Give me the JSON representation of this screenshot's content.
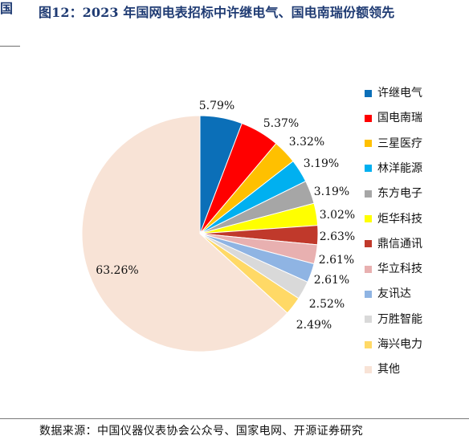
{
  "header": {
    "left_mark": "国",
    "title": "图12：2023 年国网电表招标中许继电气、国电南瑞份额领先"
  },
  "chart_data": {
    "type": "pie",
    "title": "",
    "legend_position": "right",
    "series": [
      {
        "name": "许继电气",
        "value": 5.79,
        "label": "5.79%",
        "color": "#0b6fb8"
      },
      {
        "name": "国电南瑞",
        "value": 5.37,
        "label": "5.37%",
        "color": "#ff0000"
      },
      {
        "name": "三星医疗",
        "value": 3.32,
        "label": "3.32%",
        "color": "#ffc000"
      },
      {
        "name": "林洋能源",
        "value": 3.19,
        "label": "3.19%",
        "color": "#00b0f0"
      },
      {
        "name": "东方电子",
        "value": 3.19,
        "label": "3.19%",
        "color": "#a6a6a6"
      },
      {
        "name": "炬华科技",
        "value": 3.02,
        "label": "3.02%",
        "color": "#ffff00"
      },
      {
        "name": "鼎信通讯",
        "value": 2.63,
        "label": "2.63%",
        "color": "#c0392b"
      },
      {
        "name": "华立科技",
        "value": 2.61,
        "label": "2.61%",
        "color": "#e8b0b0"
      },
      {
        "name": "友讯达",
        "value": 2.61,
        "label": "2.61%",
        "color": "#8fb4e3"
      },
      {
        "name": "万胜智能",
        "value": 2.52,
        "label": "2.52%",
        "color": "#d9d9d9"
      },
      {
        "name": "海兴电力",
        "value": 2.49,
        "label": "2.49%",
        "color": "#ffd966"
      },
      {
        "name": "其他",
        "value": 63.26,
        "label": "63.26%",
        "color": "#f8e3d6"
      }
    ]
  },
  "footer": {
    "source": "数据来源：中国仪器仪表协会公众号、国家电网、开源证券研究"
  }
}
